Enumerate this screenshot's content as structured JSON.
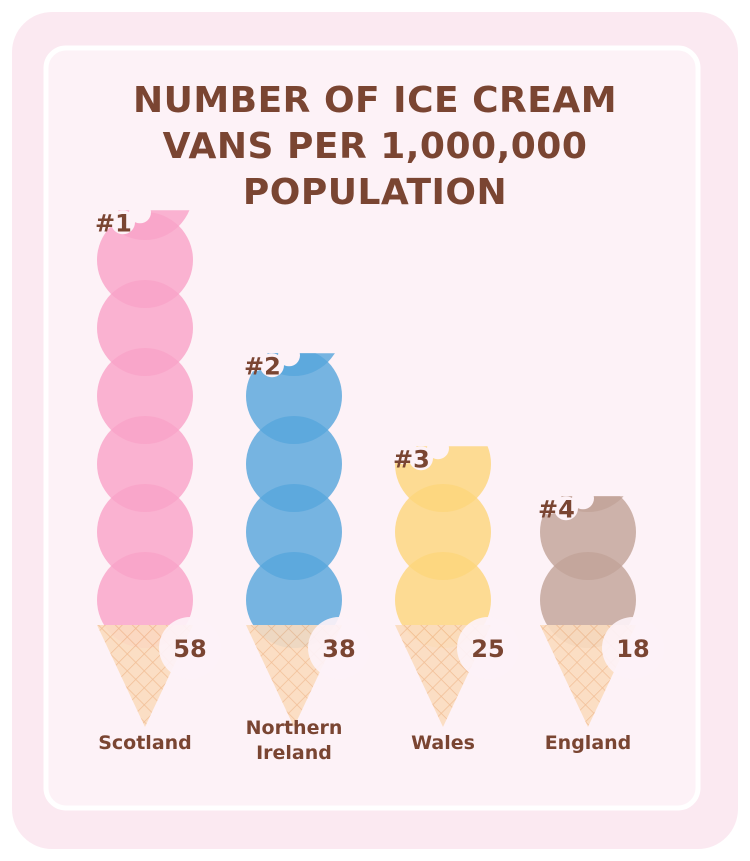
{
  "chart_data": {
    "type": "pictograph",
    "title": "NUMBER OF ICE CREAM VANS PER 1,000,000 POPULATION",
    "categories": [
      "Scotland",
      "Northern Ireland",
      "Wales",
      "England"
    ],
    "ranks": [
      "#1",
      "#2",
      "#3",
      "#4"
    ],
    "values": [
      58,
      38,
      25,
      18
    ],
    "colors": [
      "#f9a3c8",
      "#58a6dc",
      "#fdd57c",
      "#c2a398"
    ]
  }
}
